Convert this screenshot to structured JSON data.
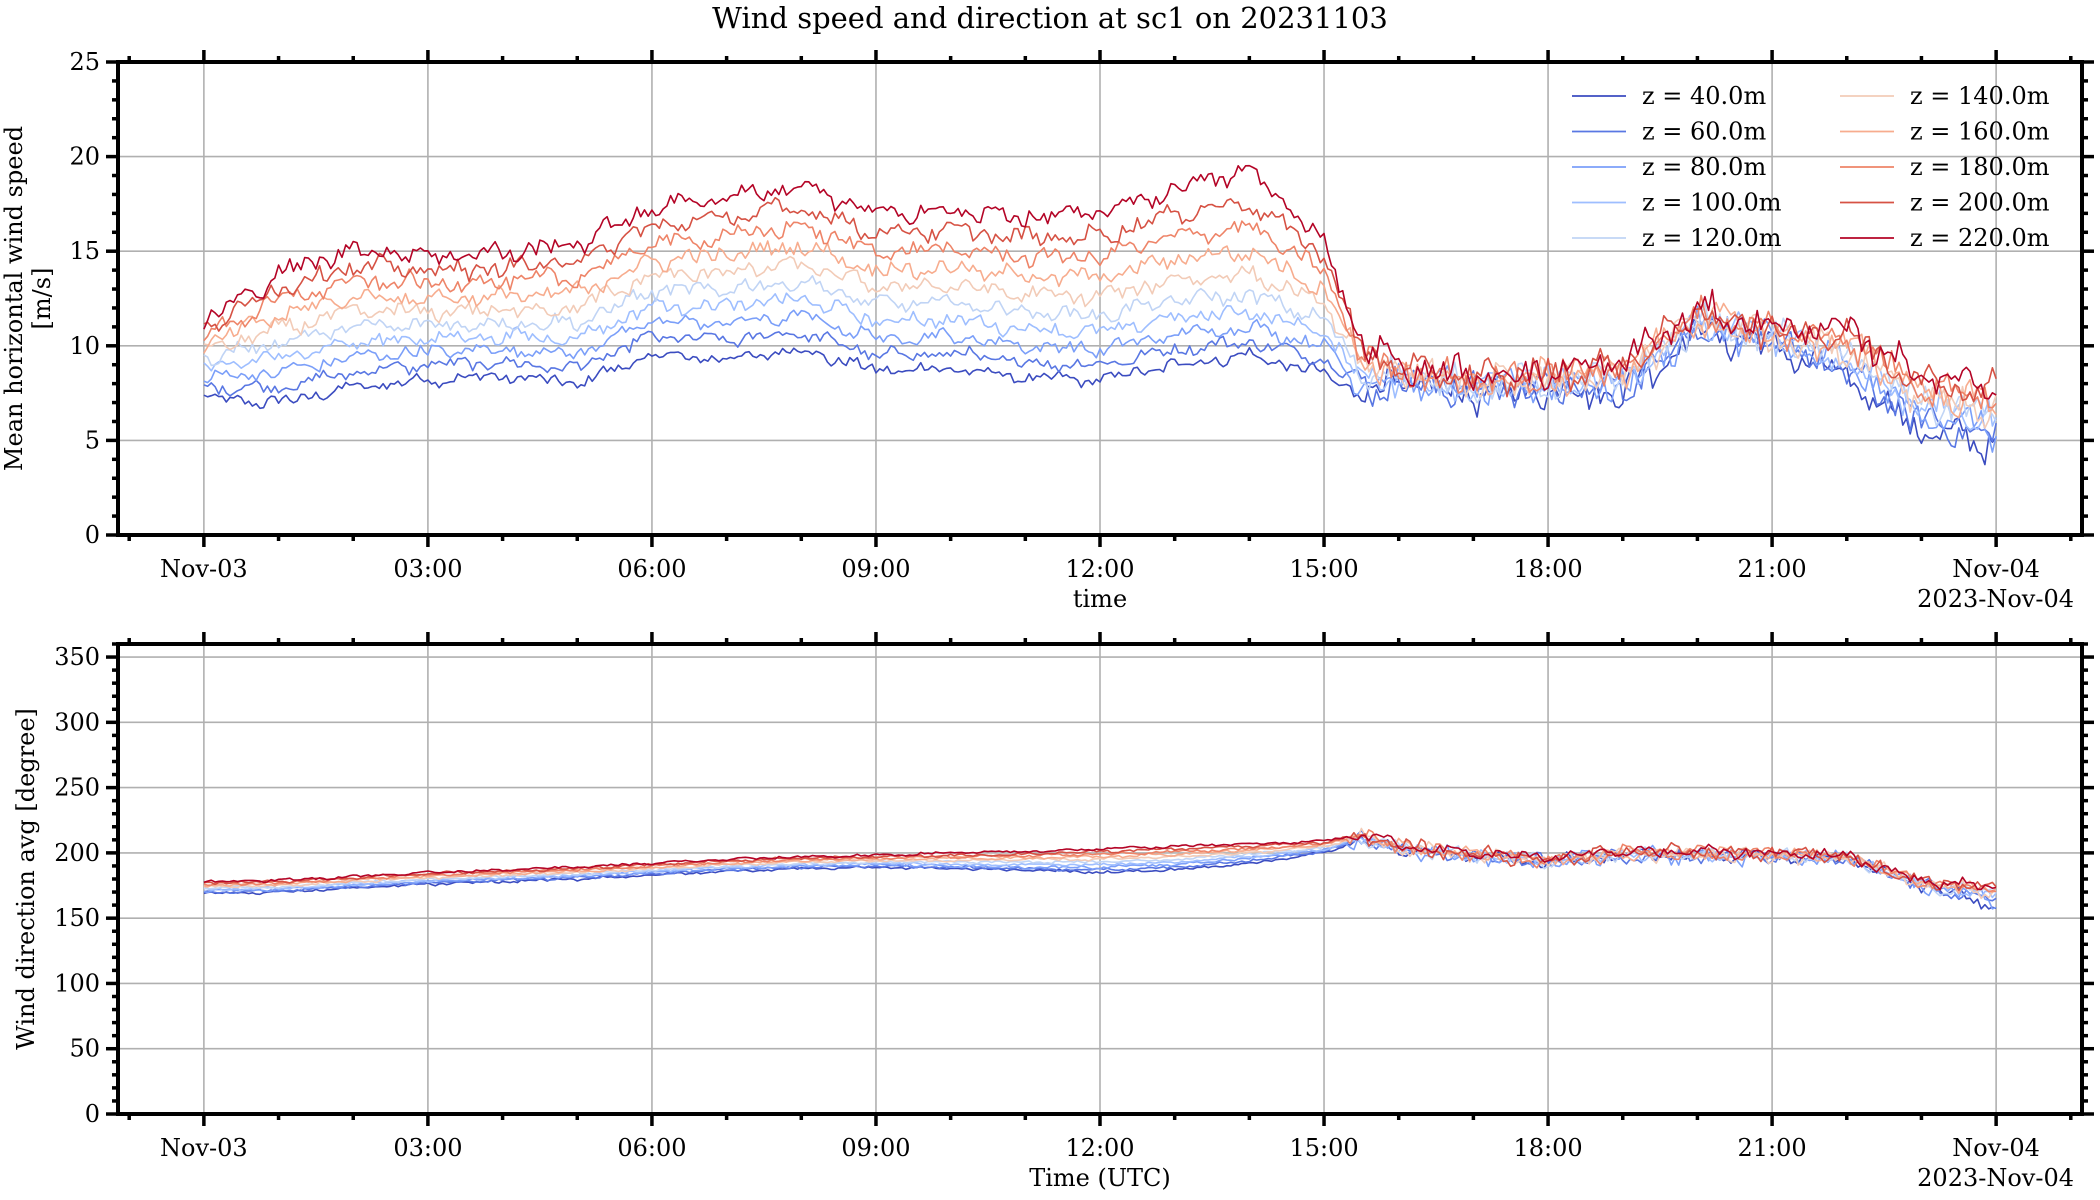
{
  "title": "Wind speed and direction at sc1 on 20231103",
  "chart_data": [
    {
      "type": "line",
      "ylabel": "Mean horizontal wind speed\n[m/s]",
      "xlabel": "time",
      "date_label": "2023-Nov-04",
      "ylim": [
        0,
        25
      ],
      "yticks": [
        0,
        5,
        10,
        15,
        20,
        25
      ],
      "xlim_hours": [
        -1.15,
        25.15
      ],
      "xticks": [
        {
          "hour": 0,
          "label": "Nov-03"
        },
        {
          "hour": 3,
          "label": "03:00"
        },
        {
          "hour": 6,
          "label": "06:00"
        },
        {
          "hour": 9,
          "label": "09:00"
        },
        {
          "hour": 12,
          "label": "12:00"
        },
        {
          "hour": 15,
          "label": "15:00"
        },
        {
          "hour": 18,
          "label": "18:00"
        },
        {
          "hour": 21,
          "label": "21:00"
        },
        {
          "hour": 24,
          "label": "Nov-04"
        }
      ],
      "grid": true,
      "legend": "top-right, 2 columns",
      "x_hours": [
        0,
        1,
        2,
        3,
        4,
        5,
        6,
        7,
        8,
        9,
        10,
        11,
        12,
        13,
        14,
        15,
        15.5,
        16,
        17,
        18,
        19,
        20,
        21,
        22,
        23,
        24
      ],
      "series": [
        {
          "name": "z = 40.0m",
          "color": "#3b4cc0",
          "values": [
            7.2,
            7.0,
            7.8,
            8.2,
            8.4,
            8.0,
            9.5,
            9.3,
            9.8,
            8.7,
            8.8,
            8.3,
            8.2,
            9.0,
            9.5,
            8.5,
            7.5,
            8.0,
            7.5,
            7.7,
            7.5,
            10.8,
            10.0,
            8.3,
            5.5,
            4.8
          ]
        },
        {
          "name": "z = 60.0m",
          "color": "#5977e3",
          "values": [
            7.8,
            7.8,
            8.6,
            9.0,
            9.1,
            8.8,
            10.5,
            10.3,
            10.7,
            9.5,
            9.6,
            9.1,
            9.0,
            9.8,
            10.2,
            9.3,
            7.8,
            8.1,
            7.6,
            7.8,
            7.7,
            11.0,
            10.1,
            8.6,
            6.0,
            5.2
          ]
        },
        {
          "name": "z = 80.0m",
          "color": "#7b9ff9",
          "values": [
            8.3,
            8.6,
            9.4,
            9.7,
            9.8,
            9.6,
            11.3,
            11.2,
            11.6,
            10.4,
            10.5,
            10.0,
            9.8,
            10.6,
            11.0,
            10.0,
            8.1,
            8.2,
            7.7,
            7.9,
            7.9,
            11.1,
            10.3,
            8.9,
            6.4,
            5.6
          ]
        },
        {
          "name": "z = 100.0m",
          "color": "#9ebeff",
          "values": [
            8.8,
            9.4,
            10.2,
            10.4,
            10.5,
            10.4,
            12.1,
            12.1,
            12.5,
            11.3,
            11.4,
            10.9,
            10.7,
            11.5,
            11.8,
            10.7,
            8.4,
            8.3,
            7.8,
            8.0,
            8.1,
            11.2,
            10.4,
            9.2,
            6.8,
            6.0
          ]
        },
        {
          "name": "z = 120.0m",
          "color": "#c0d4f5",
          "values": [
            9.3,
            10.2,
            11.0,
            11.1,
            11.2,
            11.2,
            12.9,
            13.0,
            13.4,
            12.2,
            12.3,
            11.8,
            11.6,
            12.4,
            12.7,
            11.4,
            8.7,
            8.4,
            7.9,
            8.1,
            8.3,
            11.3,
            10.5,
            9.5,
            7.1,
            6.3
          ]
        },
        {
          "name": "z = 140.0m",
          "color": "#f2cbb7",
          "values": [
            9.7,
            10.9,
            11.8,
            11.8,
            11.9,
            12.0,
            13.7,
            13.9,
            14.3,
            13.1,
            13.2,
            12.7,
            12.6,
            13.5,
            13.8,
            12.2,
            9.0,
            8.5,
            8.0,
            8.2,
            8.5,
            11.4,
            10.6,
            9.8,
            7.4,
            6.6
          ]
        },
        {
          "name": "z = 160.0m",
          "color": "#f7ac8e",
          "values": [
            10.1,
            11.6,
            12.6,
            12.5,
            12.6,
            12.8,
            14.5,
            14.8,
            15.3,
            14.0,
            14.1,
            13.7,
            13.6,
            14.6,
            15.0,
            13.0,
            9.3,
            8.6,
            8.1,
            8.3,
            8.7,
            11.5,
            10.7,
            10.1,
            7.7,
            6.9
          ]
        },
        {
          "name": "z = 180.0m",
          "color": "#ee8468",
          "values": [
            10.5,
            12.4,
            13.4,
            13.3,
            13.4,
            13.6,
            15.4,
            15.8,
            16.3,
            15.0,
            15.1,
            14.7,
            14.7,
            15.8,
            16.3,
            13.9,
            9.5,
            8.7,
            8.2,
            8.4,
            8.9,
            11.6,
            10.8,
            10.4,
            8.0,
            7.2
          ]
        },
        {
          "name": "z = 200.0m",
          "color": "#d65244",
          "values": [
            10.9,
            13.1,
            14.2,
            14.0,
            14.1,
            14.5,
            16.3,
            16.8,
            17.3,
            16.0,
            16.1,
            15.7,
            15.8,
            17.0,
            17.6,
            14.8,
            9.8,
            8.8,
            8.3,
            8.5,
            9.0,
            11.7,
            10.9,
            10.6,
            8.2,
            7.5
          ]
        },
        {
          "name": "z = 220.0m",
          "color": "#b40426",
          "values": [
            11.2,
            13.8,
            15.1,
            14.8,
            14.9,
            15.4,
            17.3,
            17.9,
            18.4,
            17.0,
            17.1,
            16.8,
            17.0,
            18.3,
            19.3,
            15.5,
            10.2,
            8.9,
            8.4,
            8.6,
            9.1,
            11.8,
            11.0,
            10.8,
            8.5,
            7.9
          ]
        }
      ]
    },
    {
      "type": "line",
      "ylabel": "Wind direction avg [degree]",
      "xlabel": "Time (UTC)",
      "date_label": "2023-Nov-04",
      "ylim": [
        0,
        360
      ],
      "yticks": [
        0,
        50,
        100,
        150,
        200,
        250,
        300,
        350
      ],
      "xlim_hours": [
        -1.15,
        25.15
      ],
      "xticks": [
        {
          "hour": 0,
          "label": "Nov-03"
        },
        {
          "hour": 3,
          "label": "03:00"
        },
        {
          "hour": 6,
          "label": "06:00"
        },
        {
          "hour": 9,
          "label": "09:00"
        },
        {
          "hour": 12,
          "label": "12:00"
        },
        {
          "hour": 15,
          "label": "15:00"
        },
        {
          "hour": 18,
          "label": "18:00"
        },
        {
          "hour": 21,
          "label": "21:00"
        },
        {
          "hour": 24,
          "label": "Nov-04"
        }
      ],
      "grid": true,
      "x_hours": [
        0,
        1,
        2,
        3,
        4,
        5,
        6,
        7,
        8,
        9,
        10,
        11,
        12,
        13,
        14,
        15,
        15.5,
        16,
        17,
        18,
        19,
        20,
        21,
        22,
        23,
        24
      ],
      "series": [
        {
          "name": "z = 40.0m",
          "color": "#3b4cc0",
          "values": [
            169,
            170,
            173,
            176,
            178,
            180,
            183,
            186,
            188,
            189,
            188,
            187,
            185,
            187,
            192,
            200,
            210,
            203,
            197,
            193,
            198,
            198,
            197,
            195,
            174,
            160
          ]
        },
        {
          "name": "z = 60.0m",
          "color": "#5977e3",
          "values": [
            170,
            171,
            174,
            177,
            179,
            181,
            184,
            187,
            189,
            190,
            189,
            188,
            187,
            189,
            194,
            201,
            211,
            203,
            197,
            193,
            198,
            198,
            197,
            195,
            175,
            163
          ]
        },
        {
          "name": "z = 80.0m",
          "color": "#7b9ff9",
          "values": [
            171,
            172,
            175,
            178,
            180,
            182,
            185,
            188,
            190,
            191,
            190,
            189,
            189,
            191,
            196,
            202,
            211,
            203,
            197,
            193,
            198,
            198,
            197,
            195,
            175,
            165
          ]
        },
        {
          "name": "z = 100.0m",
          "color": "#9ebeff",
          "values": [
            172,
            173,
            176,
            179,
            181,
            183,
            186,
            189,
            191,
            192,
            191,
            191,
            191,
            193,
            197,
            203,
            212,
            204,
            198,
            194,
            198,
            199,
            198,
            196,
            176,
            167
          ]
        },
        {
          "name": "z = 120.0m",
          "color": "#c0d4f5",
          "values": [
            173,
            174,
            177,
            180,
            182,
            184,
            187,
            190,
            192,
            193,
            193,
            193,
            193,
            195,
            199,
            204,
            212,
            204,
            198,
            194,
            199,
            199,
            198,
            196,
            176,
            168
          ]
        },
        {
          "name": "z = 140.0m",
          "color": "#f2cbb7",
          "values": [
            174,
            175,
            178,
            181,
            183,
            185,
            188,
            191,
            193,
            194,
            194,
            195,
            195,
            197,
            200,
            205,
            213,
            204,
            198,
            194,
            199,
            199,
            198,
            196,
            177,
            170
          ]
        },
        {
          "name": "z = 160.0m",
          "color": "#f7ac8e",
          "values": [
            175,
            176,
            179,
            182,
            184,
            186,
            189,
            192,
            194,
            195,
            196,
            196,
            197,
            199,
            202,
            206,
            213,
            205,
            199,
            195,
            199,
            200,
            199,
            197,
            177,
            171
          ]
        },
        {
          "name": "z = 180.0m",
          "color": "#ee8468",
          "values": [
            176,
            177,
            180,
            183,
            185,
            187,
            190,
            193,
            195,
            196,
            197,
            198,
            199,
            201,
            203,
            207,
            214,
            205,
            199,
            195,
            200,
            200,
            199,
            197,
            178,
            172
          ]
        },
        {
          "name": "z = 200.0m",
          "color": "#d65244",
          "values": [
            177,
            178,
            181,
            184,
            186,
            188,
            191,
            194,
            196,
            197,
            198,
            199,
            201,
            203,
            205,
            208,
            214,
            205,
            199,
            195,
            200,
            201,
            200,
            198,
            178,
            173
          ]
        },
        {
          "name": "z = 220.0m",
          "color": "#b40426",
          "values": [
            178,
            179,
            182,
            185,
            187,
            189,
            192,
            195,
            197,
            198,
            200,
            201,
            203,
            205,
            207,
            209,
            215,
            206,
            200,
            196,
            201,
            201,
            200,
            198,
            179,
            174
          ]
        }
      ]
    }
  ]
}
